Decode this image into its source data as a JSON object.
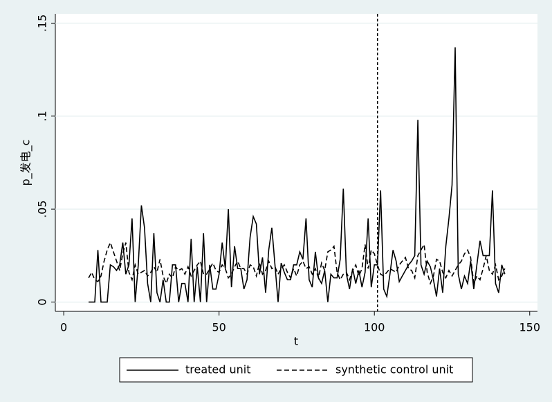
{
  "chart_data": {
    "type": "line",
    "x_label": "t",
    "y_label": "p_发电_c",
    "x": [
      8,
      9,
      10,
      11,
      12,
      13,
      14,
      15,
      16,
      17,
      18,
      19,
      20,
      21,
      22,
      23,
      24,
      25,
      26,
      27,
      28,
      29,
      30,
      31,
      32,
      33,
      34,
      35,
      36,
      37,
      38,
      39,
      40,
      41,
      42,
      43,
      44,
      45,
      46,
      47,
      48,
      49,
      50,
      51,
      52,
      53,
      54,
      55,
      56,
      57,
      58,
      59,
      60,
      61,
      62,
      63,
      64,
      65,
      66,
      67,
      68,
      69,
      70,
      71,
      72,
      73,
      74,
      75,
      76,
      77,
      78,
      79,
      80,
      81,
      82,
      83,
      84,
      85,
      86,
      87,
      88,
      89,
      90,
      91,
      92,
      93,
      94,
      95,
      96,
      97,
      98,
      99,
      100,
      101,
      102,
      103,
      104,
      105,
      106,
      107,
      108,
      109,
      110,
      111,
      112,
      113,
      114,
      115,
      116,
      117,
      118,
      119,
      120,
      121,
      122,
      123,
      124,
      125,
      126,
      127,
      128,
      129,
      130,
      131,
      132,
      133,
      134,
      135,
      136,
      137,
      138,
      139,
      140,
      141,
      142
    ],
    "series": [
      {
        "name": "treated unit",
        "color": "#000000",
        "dash": "solid",
        "values": [
          0,
          0,
          0,
          0.028,
          0,
          0,
          0,
          0.02,
          0.019,
          0.017,
          0.02,
          0.032,
          0.015,
          0.02,
          0.045,
          0,
          0.02,
          0.052,
          0.04,
          0.01,
          0,
          0.037,
          0.005,
          0,
          0.012,
          0,
          0,
          0.02,
          0.02,
          0,
          0.01,
          0.01,
          0,
          0.034,
          0,
          0.019,
          0,
          0.037,
          0,
          0.02,
          0.007,
          0.007,
          0.015,
          0.032,
          0.018,
          0.05,
          0.008,
          0.03,
          0.018,
          0.018,
          0.007,
          0.012,
          0.035,
          0.046,
          0.042,
          0.015,
          0.024,
          0.005,
          0.028,
          0.04,
          0.02,
          0,
          0.021,
          0.016,
          0.012,
          0.012,
          0.02,
          0.02,
          0.027,
          0.023,
          0.045,
          0.012,
          0.008,
          0.027,
          0.013,
          0.01,
          0.017,
          0,
          0.015,
          0.013,
          0.013,
          0.023,
          0.061,
          0.015,
          0.007,
          0.018,
          0.01,
          0.017,
          0.008,
          0.016,
          0.045,
          0.008,
          0.02,
          0.02,
          0.06,
          0.007,
          0.003,
          0.015,
          0.028,
          0.022,
          0.011,
          0.014,
          0.017,
          0.02,
          0.022,
          0.025,
          0.098,
          0.02,
          0.015,
          0.022,
          0.019,
          0.012,
          0.003,
          0.018,
          0.005,
          0.03,
          0.045,
          0.063,
          0.137,
          0.015,
          0.007,
          0.014,
          0.01,
          0.022,
          0.007,
          0.02,
          0.033,
          0.025,
          0.025,
          0.025,
          0.06,
          0.01,
          0.005,
          0.02,
          0.015
        ]
      },
      {
        "name": "synthetic control unit",
        "color": "#000000",
        "dash": "dashed",
        "values": [
          0.013,
          0.016,
          0.012,
          0.011,
          0.014,
          0.022,
          0.028,
          0.032,
          0.027,
          0.022,
          0.017,
          0.026,
          0.032,
          0.016,
          0.012,
          0.02,
          0.015,
          0.016,
          0.017,
          0.014,
          0.016,
          0.019,
          0.016,
          0.023,
          0.014,
          0.01,
          0.015,
          0.013,
          0.019,
          0.017,
          0.018,
          0.015,
          0.019,
          0.014,
          0.017,
          0.02,
          0.022,
          0.015,
          0.015,
          0.018,
          0.021,
          0.017,
          0.016,
          0.02,
          0.018,
          0.013,
          0.015,
          0.019,
          0.022,
          0.018,
          0.018,
          0.015,
          0.02,
          0.019,
          0.014,
          0.021,
          0.015,
          0.017,
          0.022,
          0.018,
          0.019,
          0.015,
          0.018,
          0.02,
          0.016,
          0.013,
          0.018,
          0.014,
          0.02,
          0.022,
          0.018,
          0.019,
          0.015,
          0.018,
          0.013,
          0.021,
          0.017,
          0.027,
          0.028,
          0.03,
          0.016,
          0.012,
          0.015,
          0.016,
          0.012,
          0.017,
          0.02,
          0.014,
          0.018,
          0.031,
          0.018,
          0.028,
          0.026,
          0.02,
          0.015,
          0.014,
          0.016,
          0.018,
          0.017,
          0.016,
          0.02,
          0.022,
          0.024,
          0.018,
          0.017,
          0.013,
          0.025,
          0.028,
          0.031,
          0.016,
          0.01,
          0.014,
          0.023,
          0.022,
          0.016,
          0.013,
          0.017,
          0.014,
          0.017,
          0.02,
          0.022,
          0.026,
          0.028,
          0.024,
          0.01,
          0.014,
          0.012,
          0.018,
          0.025,
          0.017,
          0.015,
          0.02,
          0.012,
          0.014,
          0.018
        ]
      }
    ],
    "xlim": [
      -2.7,
      152.5
    ],
    "xticks": [
      0,
      50,
      100,
      150
    ],
    "ylim": [
      -0.005,
      0.155
    ],
    "yticks": [
      {
        "value": 0,
        "label": "0"
      },
      {
        "value": 0.05,
        "label": ".05"
      },
      {
        "value": 0.1,
        "label": ".1"
      },
      {
        "value": 0.15,
        "label": ".15"
      }
    ],
    "vline": 101,
    "grid": true,
    "legend": "bottom"
  }
}
